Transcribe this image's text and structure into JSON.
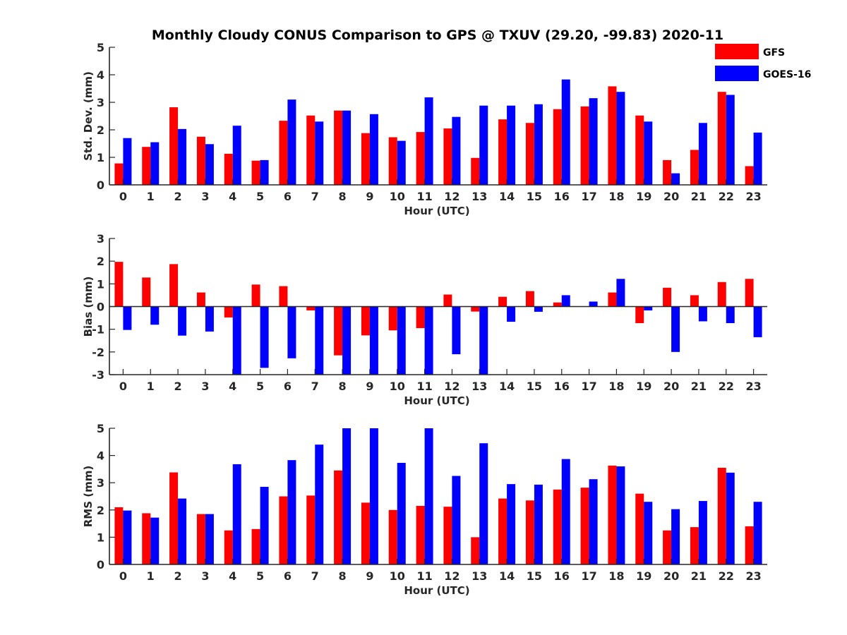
{
  "title": "Monthly Cloudy CONUS Comparison to GPS @ TXUV (29.20, -99.83) 2020-11",
  "legend": {
    "placement": "top-right",
    "entries": [
      {
        "name": "GFS",
        "color": "#ff0000"
      },
      {
        "name": "GOES-16",
        "color": "#0000ff"
      }
    ]
  },
  "chart_data": [
    {
      "type": "bar",
      "ylabel": "Std. Dev. (mm)",
      "xlabel": "Hour (UTC)",
      "ylim": [
        0,
        5
      ],
      "yticks": [
        0,
        1,
        2,
        3,
        4,
        5
      ],
      "grid": false,
      "categories": [
        "0",
        "1",
        "2",
        "3",
        "4",
        "5",
        "6",
        "7",
        "8",
        "9",
        "10",
        "11",
        "12",
        "13",
        "14",
        "15",
        "16",
        "17",
        "18",
        "19",
        "20",
        "21",
        "22",
        "23"
      ],
      "series": [
        {
          "name": "GFS",
          "color": "#ff0000",
          "values": [
            0.78,
            1.38,
            2.82,
            1.75,
            1.13,
            0.88,
            2.33,
            2.52,
            2.7,
            1.88,
            1.73,
            1.92,
            2.05,
            0.98,
            2.38,
            2.25,
            2.75,
            2.85,
            3.58,
            2.52,
            0.9,
            1.27,
            3.38,
            0.68
          ]
        },
        {
          "name": "GOES-16",
          "color": "#0000ff",
          "values": [
            1.7,
            1.55,
            2.03,
            1.48,
            2.15,
            0.9,
            3.1,
            2.3,
            2.7,
            2.57,
            1.6,
            3.18,
            2.47,
            2.88,
            2.88,
            2.93,
            3.83,
            3.15,
            3.38,
            2.3,
            0.42,
            2.25,
            3.27,
            1.9
          ]
        }
      ]
    },
    {
      "type": "bar",
      "ylabel": "Bias (mm)",
      "xlabel": "Hour (UTC)",
      "ylim": [
        -3,
        3
      ],
      "yticks": [
        -3,
        -2,
        -1,
        0,
        1,
        2,
        3
      ],
      "grid": false,
      "zero_line": true,
      "categories": [
        "0",
        "1",
        "2",
        "3",
        "4",
        "5",
        "6",
        "7",
        "8",
        "9",
        "10",
        "11",
        "12",
        "13",
        "14",
        "15",
        "16",
        "17",
        "18",
        "19",
        "20",
        "21",
        "22",
        "23"
      ],
      "series": [
        {
          "name": "GFS",
          "color": "#ff0000",
          "values": [
            1.97,
            1.28,
            1.87,
            0.62,
            -0.48,
            0.97,
            0.9,
            -0.17,
            -2.15,
            -1.27,
            -1.05,
            -0.95,
            0.53,
            -0.22,
            0.43,
            0.68,
            0.18,
            0.0,
            0.62,
            -0.73,
            0.83,
            0.5,
            1.08,
            1.22
          ]
        },
        {
          "name": "GOES-16",
          "color": "#0000ff",
          "values": [
            -1.03,
            -0.8,
            -1.28,
            -1.1,
            -3.2,
            -2.7,
            -2.28,
            -3.2,
            -3.2,
            -3.2,
            -3.2,
            -3.2,
            -2.1,
            -3.2,
            -0.67,
            -0.23,
            0.5,
            0.22,
            1.22,
            -0.17,
            -2.0,
            -0.65,
            -0.73,
            -1.35
          ]
        }
      ]
    },
    {
      "type": "bar",
      "ylabel": "RMS (mm)",
      "xlabel": "Hour (UTC)",
      "ylim": [
        0,
        5
      ],
      "yticks": [
        0,
        1,
        2,
        3,
        4,
        5
      ],
      "grid": false,
      "categories": [
        "0",
        "1",
        "2",
        "3",
        "4",
        "5",
        "6",
        "7",
        "8",
        "9",
        "10",
        "11",
        "12",
        "13",
        "14",
        "15",
        "16",
        "17",
        "18",
        "19",
        "20",
        "21",
        "22",
        "23"
      ],
      "series": [
        {
          "name": "GFS",
          "color": "#ff0000",
          "values": [
            2.1,
            1.88,
            3.38,
            1.85,
            1.25,
            1.3,
            2.5,
            2.53,
            3.45,
            2.27,
            2.0,
            2.15,
            2.12,
            1.0,
            2.42,
            2.35,
            2.75,
            2.82,
            3.63,
            2.6,
            1.25,
            1.37,
            3.55,
            1.4
          ]
        },
        {
          "name": "GOES-16",
          "color": "#0000ff",
          "values": [
            1.98,
            1.72,
            2.42,
            1.85,
            3.68,
            2.85,
            3.83,
            4.4,
            5.2,
            5.2,
            3.73,
            5.2,
            3.25,
            4.45,
            2.95,
            2.93,
            3.87,
            3.13,
            3.6,
            2.3,
            2.03,
            2.33,
            3.37,
            2.3
          ]
        }
      ]
    }
  ]
}
